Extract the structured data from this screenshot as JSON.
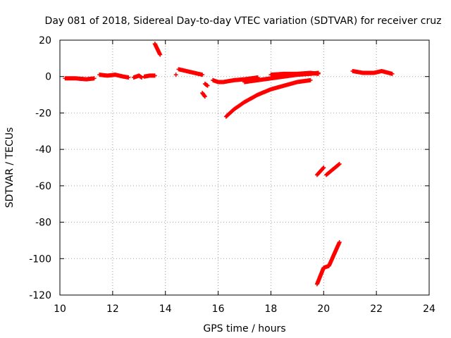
{
  "chart_data": {
    "type": "scatter",
    "title": "Day 081 of 2018, Sidereal Day-to-day VTEC variation (SDTVAR) for receiver cruz",
    "xlabel": "GPS time / hours",
    "ylabel": "SDTVAR / TECUs",
    "xlim": [
      10,
      24
    ],
    "ylim": [
      -120,
      20
    ],
    "xticks": [
      "10",
      "12",
      "14",
      "16",
      "18",
      "20",
      "22",
      "24"
    ],
    "yticks": [
      "20",
      "0",
      "-20",
      "-40",
      "-60",
      "-80",
      "-100",
      "-120"
    ],
    "grid": true,
    "marker": "plus",
    "color": "#ff0000",
    "segments": [
      {
        "x": [
          10.2,
          10.6,
          11.0,
          11.3
        ],
        "y": [
          -1,
          -1,
          -1.5,
          -1
        ]
      },
      {
        "x": [
          11.5,
          11.8,
          12.1,
          12.4,
          12.6
        ],
        "y": [
          1,
          0.5,
          1,
          0,
          -0.5
        ]
      },
      {
        "x": [
          12.8,
          13.0,
          13.1
        ],
        "y": [
          -0.5,
          0.5,
          -0.5
        ]
      },
      {
        "x": [
          13.2,
          13.4,
          13.6
        ],
        "y": [
          0,
          0.5,
          0.5
        ]
      },
      {
        "x": [
          13.6,
          13.7,
          13.8
        ],
        "y": [
          18,
          15,
          12
        ]
      },
      {
        "x": [
          14.4
        ],
        "y": [
          1
        ]
      },
      {
        "x": [
          14.5,
          14.8,
          15.1,
          15.4
        ],
        "y": [
          4,
          3,
          2,
          1
        ]
      },
      {
        "x": [
          15.4,
          15.5
        ],
        "y": [
          -9,
          -11
        ]
      },
      {
        "x": [
          15.5,
          15.6
        ],
        "y": [
          -4,
          -5
        ]
      },
      {
        "x": [
          15.8,
          16.0,
          16.2
        ],
        "y": [
          -2,
          -3,
          -3
        ]
      },
      {
        "x": [
          16.2,
          16.6,
          17.0,
          17.5
        ],
        "y": [
          -3,
          -2,
          -1.5,
          -0.5
        ]
      },
      {
        "x": [
          17.0,
          17.5,
          18.0,
          18.5,
          19.0,
          19.5,
          19.8
        ],
        "y": [
          -3,
          -2,
          -1,
          0,
          1,
          1.5,
          2
        ]
      },
      {
        "x": [
          16.3,
          16.6,
          17.0,
          17.5,
          18.0,
          18.5,
          19.0,
          19.5
        ],
        "y": [
          -22,
          -18,
          -14,
          -10,
          -7,
          -5,
          -3,
          -2
        ]
      },
      {
        "x": [
          18.0,
          18.5,
          19.0,
          19.5,
          19.8
        ],
        "y": [
          1,
          1.5,
          1.5,
          2,
          1.5
        ]
      },
      {
        "x": [
          19.75,
          20.0
        ],
        "y": [
          -54,
          -50
        ]
      },
      {
        "x": [
          20.1,
          20.6
        ],
        "y": [
          -54,
          -48
        ]
      },
      {
        "x": [
          19.75,
          20.0,
          20.2,
          20.6
        ],
        "y": [
          -114,
          -105,
          -104,
          -91
        ]
      },
      {
        "x": [
          21.1,
          21.5,
          21.9,
          22.2,
          22.6
        ],
        "y": [
          3,
          2,
          2,
          3,
          1.5
        ]
      }
    ]
  }
}
